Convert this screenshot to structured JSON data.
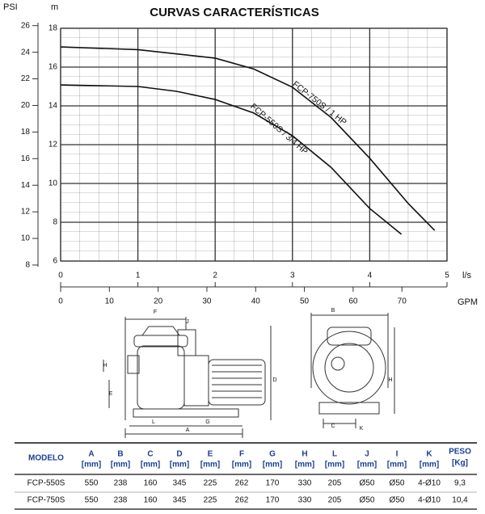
{
  "chart_data": {
    "type": "line",
    "title": "CURVAS CARACTERÍSTICAS",
    "y_label": "m",
    "y2_label": "PSI",
    "x_label": "l/s",
    "x2_label": "GPM",
    "xlim": [
      0,
      5
    ],
    "xticks": [
      0,
      1,
      2,
      3,
      4,
      5
    ],
    "x2lim": [
      0,
      79.25
    ],
    "x2ticks": [
      0,
      10,
      20,
      30,
      40,
      50,
      60,
      70
    ],
    "ylim": [
      6,
      18
    ],
    "yticks": [
      6,
      8,
      10,
      12,
      14,
      16,
      18
    ],
    "y2lim": [
      8.3,
      25.8
    ],
    "y2ticks": [
      8,
      10,
      12,
      14,
      16,
      18,
      20,
      22,
      24,
      26
    ],
    "grid": true,
    "series": [
      {
        "name": "FCP-750S / 1 HP",
        "color": "#111111",
        "x": [
          0,
          1,
          2,
          2.5,
          3,
          3.5,
          4,
          4.5,
          4.84
        ],
        "values": [
          17.04,
          16.9,
          16.46,
          15.9,
          14.96,
          13.4,
          11.3,
          8.96,
          7.58
        ]
      },
      {
        "name": "FCP-550S / 3/4 HP",
        "color": "#111111",
        "x": [
          0,
          1,
          1.5,
          2,
          2.5,
          3,
          3.5,
          4,
          4.41
        ],
        "values": [
          15.08,
          15.0,
          14.75,
          14.33,
          13.63,
          12.46,
          10.83,
          8.71,
          7.38
        ]
      }
    ]
  },
  "drawing": {
    "labels": [
      "F",
      "J",
      "H",
      "E",
      "L",
      "G",
      "A",
      "D",
      "B",
      "H",
      "C",
      "K"
    ]
  },
  "table": {
    "headers": [
      [
        "MODELO"
      ],
      [
        "A",
        "[mm]"
      ],
      [
        "B",
        "[mm]"
      ],
      [
        "C",
        "[mm]"
      ],
      [
        "D",
        "[mm]"
      ],
      [
        "E",
        "[mm]"
      ],
      [
        "F",
        "[mm]"
      ],
      [
        "G",
        "[mm]"
      ],
      [
        "H",
        "[mm]"
      ],
      [
        "L",
        "[mm]"
      ],
      [
        "J",
        "[mm]"
      ],
      [
        "I",
        "[mm]"
      ],
      [
        "K",
        "[mm]"
      ],
      [
        "PESO",
        "[Kg]"
      ]
    ],
    "rows": [
      [
        "FCP-550S",
        "550",
        "238",
        "160",
        "345",
        "225",
        "262",
        "170",
        "330",
        "205",
        "Ø50",
        "Ø50",
        "4-Ø10",
        "9,3"
      ],
      [
        "FCP-750S",
        "550",
        "238",
        "160",
        "345",
        "225",
        "262",
        "170",
        "330",
        "205",
        "Ø50",
        "Ø50",
        "4-Ø10",
        "10,4"
      ]
    ]
  }
}
